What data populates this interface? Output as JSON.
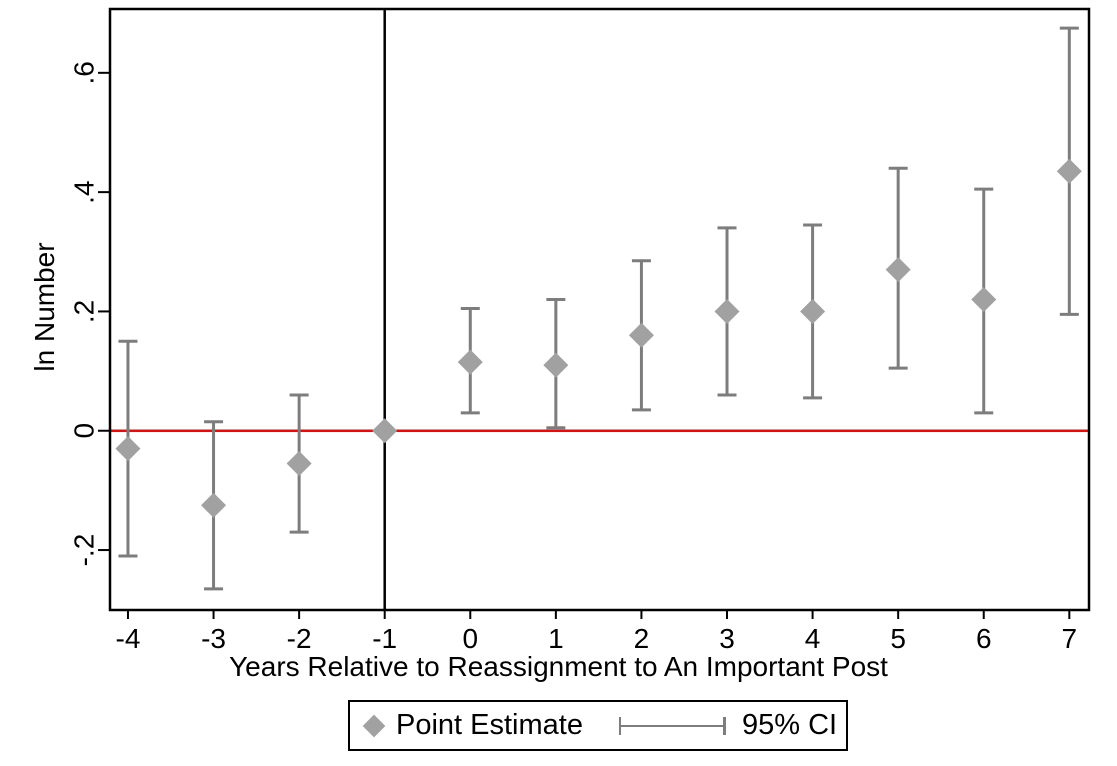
{
  "chart_data": {
    "type": "scatter",
    "subtype": "event-study-errorbar",
    "title": "",
    "xlabel": "Years Relative to Reassignment to An Important Post",
    "ylabel": "ln Number",
    "x": [
      -4,
      -3,
      -2,
      -1,
      0,
      1,
      2,
      3,
      4,
      5,
      6,
      7
    ],
    "x_tick_labels": [
      "-4",
      "-3",
      "-2",
      "-1",
      "0",
      "1",
      "2",
      "3",
      "4",
      "5",
      "6",
      "7"
    ],
    "series": [
      {
        "name": "Point Estimate",
        "estimates": [
          -0.03,
          -0.125,
          -0.055,
          0,
          0.115,
          0.11,
          0.16,
          0.2,
          0.2,
          0.27,
          0.22,
          0.435
        ],
        "ci_low": [
          -0.21,
          -0.265,
          -0.17,
          0,
          0.03,
          0.005,
          0.035,
          0.06,
          0.055,
          0.105,
          0.03,
          0.195
        ],
        "ci_high": [
          0.15,
          0.015,
          0.06,
          0,
          0.205,
          0.22,
          0.285,
          0.34,
          0.345,
          0.44,
          0.405,
          0.675
        ]
      }
    ],
    "reference_year": -1,
    "zero_line_y": 0,
    "y_ticks": [
      {
        "v": -0.2,
        "label": "-.2"
      },
      {
        "v": 0,
        "label": "0"
      },
      {
        "v": 0.2,
        "label": ".2"
      },
      {
        "v": 0.4,
        "label": ".4"
      },
      {
        "v": 0.6,
        "label": ".6"
      }
    ],
    "ylim": [
      -0.3005,
      0.707
    ],
    "xlim": [
      -4.21,
      7.23
    ],
    "grid": false,
    "legend": {
      "position": "bottom-center",
      "entries": [
        {
          "label": "Point Estimate",
          "marker": "diamond"
        },
        {
          "label": "95% CI",
          "marker": "errorbar"
        }
      ]
    },
    "colors": {
      "marker": "#a1a1a1",
      "ci": "#7d7d7d",
      "zero_line": "#ff0000",
      "event_line": "#000000",
      "frame": "#000000",
      "text": "#000000",
      "background": "#ffffff"
    }
  }
}
